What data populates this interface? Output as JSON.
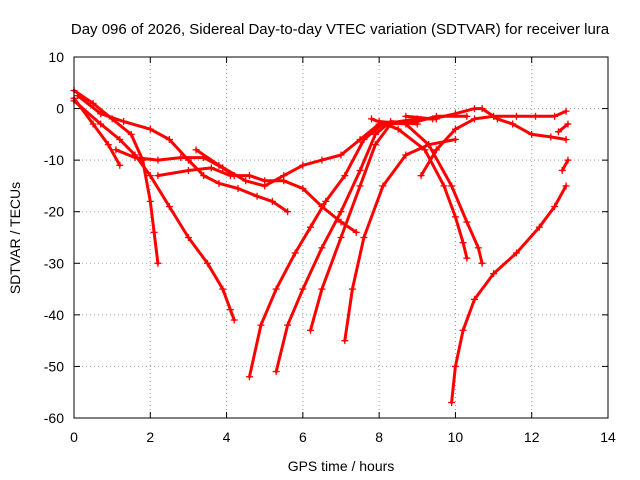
{
  "chart_data": {
    "type": "scatter",
    "title": "Day 096 of 2026, Sidereal Day-to-day VTEC variation (SDTVAR) for receiver lura",
    "xlabel": "GPS time / hours",
    "ylabel": "SDTVAR / TECUs",
    "xlim": [
      0,
      14
    ],
    "ylim": [
      -60,
      10
    ],
    "xticks": [
      0,
      2,
      4,
      6,
      8,
      10,
      12,
      14
    ],
    "yticks": [
      10,
      0,
      -10,
      -20,
      -30,
      -40,
      -50,
      -60
    ],
    "grid": true,
    "legend": "none",
    "marker": "+",
    "color": "#ff0000",
    "series": [
      {
        "name": "track-1",
        "points": [
          [
            0,
            3.5
          ],
          [
            0.5,
            1
          ],
          [
            1.0,
            -2
          ],
          [
            1.5,
            -5
          ],
          [
            1.8,
            -10
          ],
          [
            2.0,
            -18
          ],
          [
            2.1,
            -24
          ],
          [
            2.2,
            -30
          ]
        ]
      },
      {
        "name": "track-2",
        "points": [
          [
            0,
            2
          ],
          [
            0.5,
            -3
          ],
          [
            0.9,
            -7
          ],
          [
            1.2,
            -11
          ]
        ]
      },
      {
        "name": "track-3",
        "points": [
          [
            0,
            1.5
          ],
          [
            0.7,
            -3
          ],
          [
            1.2,
            -6
          ],
          [
            1.6,
            -9
          ],
          [
            2.0,
            -13
          ],
          [
            2.5,
            -19
          ],
          [
            3.0,
            -25
          ],
          [
            3.5,
            -30
          ],
          [
            3.9,
            -35
          ],
          [
            4.1,
            -39
          ],
          [
            4.2,
            -41
          ]
        ]
      },
      {
        "name": "track-4",
        "points": [
          [
            1.1,
            -8
          ],
          [
            1.6,
            -9.5
          ],
          [
            2.2,
            -10
          ],
          [
            2.8,
            -9.5
          ],
          [
            3.4,
            -9.5
          ],
          [
            3.9,
            -11.5
          ],
          [
            4.2,
            -13
          ]
        ]
      },
      {
        "name": "track-5",
        "points": [
          [
            0.1,
            2.5
          ],
          [
            0.7,
            -1
          ],
          [
            1.3,
            -2.5
          ],
          [
            2.0,
            -4
          ],
          [
            2.5,
            -6
          ],
          [
            3.0,
            -10
          ],
          [
            3.4,
            -13
          ],
          [
            3.8,
            -14.5
          ],
          [
            4.3,
            -15.5
          ],
          [
            4.8,
            -17
          ],
          [
            5.2,
            -18
          ],
          [
            5.6,
            -20
          ]
        ]
      },
      {
        "name": "track-6",
        "points": [
          [
            2.2,
            -13
          ],
          [
            3.0,
            -12
          ],
          [
            3.6,
            -11.5
          ],
          [
            4.1,
            -13
          ],
          [
            4.6,
            -13
          ],
          [
            5.0,
            -14
          ],
          [
            5.5,
            -14
          ],
          [
            6.0,
            -15.5
          ],
          [
            6.5,
            -19
          ],
          [
            7.0,
            -22
          ],
          [
            7.4,
            -24
          ]
        ]
      },
      {
        "name": "track-7",
        "points": [
          [
            3.2,
            -8
          ],
          [
            3.8,
            -11
          ],
          [
            4.5,
            -14
          ],
          [
            5.0,
            -15
          ],
          [
            5.5,
            -13
          ],
          [
            6.0,
            -11
          ],
          [
            6.5,
            -10
          ],
          [
            7.0,
            -9
          ],
          [
            7.5,
            -6
          ],
          [
            8.0,
            -3
          ]
        ]
      },
      {
        "name": "track-8",
        "points": [
          [
            4.6,
            -52
          ],
          [
            4.9,
            -42
          ],
          [
            5.3,
            -35
          ],
          [
            5.8,
            -28
          ],
          [
            6.2,
            -23
          ],
          [
            6.6,
            -18
          ],
          [
            7.1,
            -13
          ],
          [
            7.6,
            -6
          ],
          [
            8.1,
            -3
          ],
          [
            9.0,
            -2
          ],
          [
            9.5,
            -2
          ]
        ]
      },
      {
        "name": "track-9",
        "points": [
          [
            5.3,
            -51
          ],
          [
            5.6,
            -42
          ],
          [
            6.0,
            -35
          ],
          [
            6.5,
            -27
          ],
          [
            7.0,
            -20
          ],
          [
            7.5,
            -12
          ],
          [
            7.9,
            -5
          ],
          [
            8.3,
            -2.5
          ],
          [
            9.0,
            -3
          ]
        ]
      },
      {
        "name": "track-10",
        "points": [
          [
            6.2,
            -43
          ],
          [
            6.5,
            -35
          ],
          [
            7.0,
            -25
          ],
          [
            7.5,
            -15
          ],
          [
            7.9,
            -7
          ],
          [
            8.3,
            -3
          ],
          [
            9.0,
            -2.5
          ],
          [
            9.5,
            -1.5
          ],
          [
            10.3,
            -1.5
          ]
        ]
      },
      {
        "name": "track-11",
        "points": [
          [
            7.1,
            -45
          ],
          [
            7.3,
            -35
          ],
          [
            7.6,
            -25
          ],
          [
            8.1,
            -15
          ],
          [
            8.7,
            -9
          ],
          [
            9.3,
            -7
          ],
          [
            10.0,
            -6
          ]
        ]
      },
      {
        "name": "track-12",
        "points": [
          [
            7.8,
            -2
          ],
          [
            8.5,
            -4
          ],
          [
            9.2,
            -8
          ],
          [
            9.7,
            -15
          ],
          [
            10.0,
            -21
          ],
          [
            10.2,
            -26
          ],
          [
            10.3,
            -29
          ]
        ]
      },
      {
        "name": "track-13",
        "points": [
          [
            8.0,
            -2.5
          ],
          [
            8.7,
            -3
          ],
          [
            9.3,
            -7
          ],
          [
            9.9,
            -15
          ],
          [
            10.3,
            -22
          ],
          [
            10.6,
            -27
          ],
          [
            10.7,
            -30
          ]
        ]
      },
      {
        "name": "track-14",
        "points": [
          [
            9.1,
            -13
          ],
          [
            9.5,
            -8
          ],
          [
            10.0,
            -4
          ],
          [
            10.5,
            -2
          ],
          [
            11.0,
            -1.5
          ],
          [
            11.6,
            -1.5
          ],
          [
            12.1,
            -1.5
          ],
          [
            12.6,
            -1.5
          ],
          [
            12.9,
            -0.5
          ]
        ]
      },
      {
        "name": "track-15",
        "points": [
          [
            8.7,
            -1.5
          ],
          [
            9.4,
            -2
          ],
          [
            10.0,
            -1
          ],
          [
            10.5,
            0
          ],
          [
            10.7,
            0
          ],
          [
            11.1,
            -2
          ],
          [
            11.5,
            -3
          ],
          [
            12.0,
            -5
          ],
          [
            12.5,
            -5.5
          ],
          [
            12.9,
            -6
          ]
        ]
      },
      {
        "name": "track-16",
        "points": [
          [
            9.9,
            -57
          ],
          [
            10.0,
            -50
          ],
          [
            10.2,
            -43
          ],
          [
            10.5,
            -37
          ],
          [
            11.0,
            -32
          ],
          [
            11.6,
            -28
          ],
          [
            12.2,
            -23
          ],
          [
            12.6,
            -19
          ],
          [
            12.9,
            -15
          ]
        ]
      },
      {
        "name": "track-17",
        "points": [
          [
            12.7,
            -4.5
          ],
          [
            12.95,
            -3
          ]
        ]
      },
      {
        "name": "track-18",
        "points": [
          [
            12.8,
            -12
          ],
          [
            12.95,
            -10
          ]
        ]
      }
    ]
  }
}
